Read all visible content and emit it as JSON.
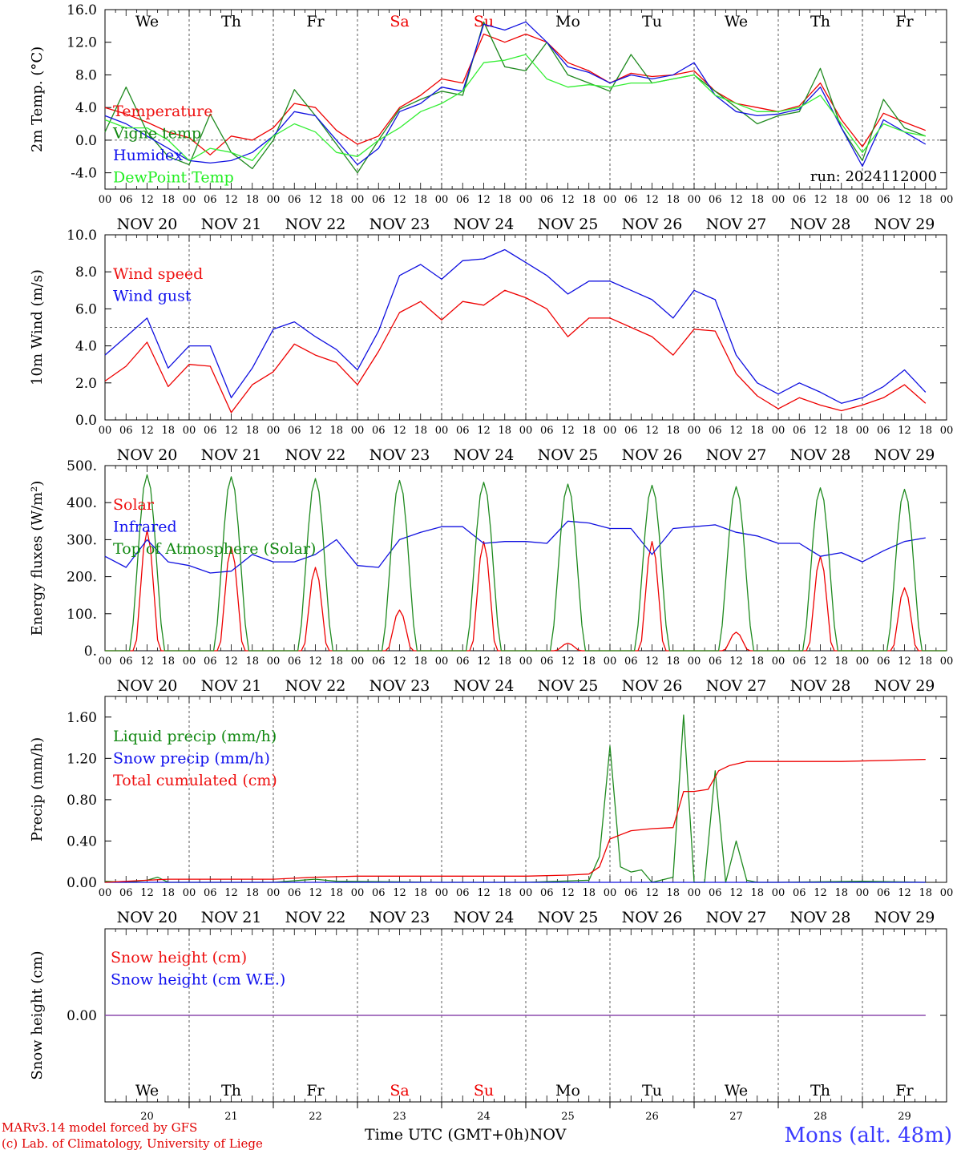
{
  "colors": {
    "red": "#ee0000",
    "green": "#1f8a1f",
    "blue": "#1010e0",
    "lightgreen": "#33ee33",
    "purple": "#8844aa",
    "weekend": "#ee0000",
    "text": "#000000",
    "legend_red": "#ee1111",
    "legend_green": "#118811",
    "legend_blue": "#1111ee",
    "legend_lightgreen": "#22ee22"
  },
  "days": [
    "We",
    "Th",
    "Fr",
    "Sa",
    "Su",
    "Mo",
    "Tu",
    "We",
    "Th",
    "Fr"
  ],
  "weekend_days": [
    "Sa",
    "Su"
  ],
  "date_labels": [
    "NOV 20",
    "NOV 21",
    "NOV 22",
    "NOV 23",
    "NOV 24",
    "NOV 25",
    "NOV 26",
    "NOV 27",
    "NOV 28",
    "NOV 29"
  ],
  "hour_ticks": [
    "00",
    "06",
    "12",
    "18"
  ],
  "bottom_day_numbers": [
    "20",
    "21",
    "22",
    "23",
    "24",
    "25",
    "26",
    "27",
    "28",
    "29"
  ],
  "run_label": "run: 2024112000",
  "footer": {
    "credit_line1": "MARv3.14 model forced by GFS",
    "credit_line2": "(c) Lab. of Climatology, University of Liege",
    "x_axis_title": "Time UTC (GMT+0h)",
    "month": "NOV",
    "location": "Mons (alt. 48m)"
  },
  "chart_data": [
    {
      "type": "line",
      "ylabel": "2m Temp. (°C)",
      "ylim": [
        -6,
        16
      ],
      "ytick_values": [
        -4,
        0,
        4,
        8,
        12,
        16
      ],
      "ytick_labels": [
        "-4.0",
        "0.0",
        "4.0",
        "8.0",
        "12.0",
        "16.0"
      ],
      "reference_line": 0,
      "x_unit": "hours since 2024-11-20 00 UTC",
      "series": [
        {
          "name": "Temperature",
          "color": "red",
          "x": [
            0,
            6,
            12,
            18,
            24,
            30,
            36,
            42,
            48,
            54,
            60,
            66,
            72,
            78,
            84,
            90,
            96,
            102,
            108,
            114,
            120,
            126,
            132,
            138,
            144,
            150,
            156,
            162,
            168,
            174,
            180,
            186,
            192,
            198,
            204,
            210,
            216,
            222,
            228,
            234
          ],
          "y": [
            4.0,
            3.2,
            2.2,
            1.0,
            0.3,
            -1.8,
            0.5,
            0.0,
            1.5,
            4.5,
            4.0,
            1.2,
            -0.5,
            0.5,
            4.0,
            5.5,
            7.5,
            7.0,
            13.0,
            12.0,
            13.0,
            12.0,
            9.5,
            8.5,
            7.0,
            8.2,
            7.8,
            8.0,
            8.5,
            6.0,
            4.5,
            4.0,
            3.5,
            4.2,
            7.0,
            2.5,
            -0.8,
            3.3,
            2.2,
            1.2
          ]
        },
        {
          "name": "Vigne temp",
          "color": "green",
          "x": [
            0,
            6,
            12,
            18,
            24,
            30,
            36,
            42,
            48,
            54,
            60,
            66,
            72,
            78,
            84,
            90,
            96,
            102,
            108,
            114,
            120,
            126,
            132,
            138,
            144,
            150,
            156,
            162,
            168,
            174,
            180,
            186,
            192,
            198,
            204,
            210,
            216,
            222,
            228,
            234
          ],
          "y": [
            1.0,
            6.5,
            1.0,
            -2.0,
            -3.0,
            3.2,
            -1.5,
            -3.5,
            0.0,
            6.2,
            3.0,
            -0.5,
            -4.0,
            0.0,
            3.8,
            5.0,
            6.0,
            5.5,
            14.5,
            9.0,
            8.5,
            12.0,
            8.0,
            7.0,
            6.0,
            10.5,
            7.0,
            7.5,
            8.0,
            6.0,
            4.0,
            2.0,
            3.0,
            3.5,
            8.8,
            1.5,
            -2.5,
            5.0,
            1.5,
            0.5
          ]
        },
        {
          "name": "Humidex",
          "color": "blue",
          "x": [
            0,
            6,
            12,
            18,
            24,
            30,
            36,
            42,
            48,
            54,
            60,
            66,
            72,
            78,
            84,
            90,
            96,
            102,
            108,
            114,
            120,
            126,
            132,
            138,
            144,
            150,
            156,
            162,
            168,
            174,
            180,
            186,
            192,
            198,
            204,
            210,
            216,
            222,
            228,
            234
          ],
          "y": [
            3.0,
            2.0,
            0.5,
            -1.0,
            -2.5,
            -2.8,
            -2.5,
            -1.5,
            0.5,
            3.5,
            3.0,
            0.0,
            -3.0,
            -1.0,
            3.5,
            4.5,
            6.5,
            6.0,
            14.2,
            13.5,
            14.5,
            12.0,
            9.0,
            8.3,
            7.0,
            8.0,
            7.5,
            8.0,
            9.5,
            5.5,
            3.5,
            3.0,
            3.2,
            3.8,
            6.5,
            1.5,
            -3.2,
            2.5,
            1.0,
            -0.5
          ]
        },
        {
          "name": "DewPoint Temp",
          "color": "lightgreen",
          "x": [
            0,
            6,
            12,
            18,
            24,
            30,
            36,
            42,
            48,
            54,
            60,
            66,
            72,
            78,
            84,
            90,
            96,
            102,
            108,
            114,
            120,
            126,
            132,
            138,
            144,
            150,
            156,
            162,
            168,
            174,
            180,
            186,
            192,
            198,
            204,
            210,
            216,
            222,
            228,
            234
          ],
          "y": [
            2.5,
            1.5,
            1.5,
            0.0,
            -2.5,
            -1.0,
            -1.5,
            -2.5,
            0.5,
            2.0,
            1.0,
            -1.5,
            -2.0,
            0.0,
            1.5,
            3.5,
            4.5,
            6.0,
            9.5,
            9.8,
            10.5,
            7.5,
            6.5,
            6.8,
            6.5,
            7.0,
            7.0,
            7.5,
            8.0,
            5.5,
            4.5,
            3.5,
            3.5,
            4.0,
            5.5,
            2.0,
            -1.5,
            2.0,
            1.0,
            0.5
          ]
        }
      ]
    },
    {
      "type": "line",
      "ylabel": "10m Wind (m/s)",
      "ylim": [
        0,
        10
      ],
      "ytick_values": [
        0,
        2,
        4,
        6,
        8,
        10
      ],
      "ytick_labels": [
        "0.0",
        "2.0",
        "4.0",
        "6.0",
        "8.0",
        "10.0"
      ],
      "reference_line": 5,
      "x_unit": "hours since 2024-11-20 00 UTC",
      "series": [
        {
          "name": "Wind speed",
          "color": "red",
          "x": [
            0,
            6,
            12,
            18,
            24,
            30,
            36,
            42,
            48,
            54,
            60,
            66,
            72,
            78,
            84,
            90,
            96,
            102,
            108,
            114,
            120,
            126,
            132,
            138,
            144,
            150,
            156,
            162,
            168,
            174,
            180,
            186,
            192,
            198,
            204,
            210,
            216,
            222,
            228,
            234
          ],
          "y": [
            2.1,
            2.9,
            4.2,
            1.8,
            3.0,
            2.9,
            0.4,
            1.9,
            2.6,
            4.1,
            3.5,
            3.1,
            1.9,
            3.7,
            5.8,
            6.4,
            5.4,
            6.4,
            6.2,
            7.0,
            6.6,
            6.0,
            4.5,
            5.5,
            5.5,
            5.0,
            4.5,
            3.5,
            4.9,
            4.8,
            2.5,
            1.3,
            0.6,
            1.2,
            0.8,
            0.5,
            0.8,
            1.2,
            1.9,
            0.9
          ]
        },
        {
          "name": "Wind gust",
          "color": "blue",
          "x": [
            0,
            6,
            12,
            18,
            24,
            30,
            36,
            42,
            48,
            54,
            60,
            66,
            72,
            78,
            84,
            90,
            96,
            102,
            108,
            114,
            120,
            126,
            132,
            138,
            144,
            150,
            156,
            162,
            168,
            174,
            180,
            186,
            192,
            198,
            204,
            210,
            216,
            222,
            228,
            234
          ],
          "y": [
            3.5,
            4.5,
            5.5,
            2.8,
            4.0,
            4.0,
            1.2,
            2.8,
            4.9,
            5.3,
            4.5,
            3.8,
            2.7,
            4.8,
            7.8,
            8.4,
            7.6,
            8.6,
            8.7,
            9.2,
            8.5,
            7.8,
            6.8,
            7.5,
            7.5,
            7.0,
            6.5,
            5.5,
            7.0,
            6.5,
            3.5,
            2.0,
            1.4,
            2.0,
            1.5,
            0.9,
            1.2,
            1.8,
            2.7,
            1.5
          ]
        }
      ]
    },
    {
      "type": "line",
      "ylabel": "Energy fluxes (W/m²)",
      "ylim": [
        0,
        500
      ],
      "ytick_values": [
        0,
        100,
        200,
        300,
        400,
        500
      ],
      "ytick_labels": [
        "0.",
        "100.",
        "200.",
        "300.",
        "400.",
        "500."
      ],
      "x_unit": "hours since 2024-11-20 00 UTC",
      "series": [
        {
          "name": "Solar",
          "color": "red",
          "peaks": [
            {
              "day": 0,
              "value": 325
            },
            {
              "day": 1,
              "value": 280
            },
            {
              "day": 2,
              "value": 225
            },
            {
              "day": 3,
              "value": 110
            },
            {
              "day": 4,
              "value": 295
            },
            {
              "day": 5,
              "value": 20
            },
            {
              "day": 6,
              "value": 295
            },
            {
              "day": 7,
              "value": 50
            },
            {
              "day": 8,
              "value": 255
            },
            {
              "day": 9,
              "value": 170
            }
          ]
        },
        {
          "name": "Infrared",
          "color": "blue",
          "x": [
            0,
            6,
            12,
            18,
            24,
            30,
            36,
            42,
            48,
            54,
            60,
            66,
            72,
            78,
            84,
            90,
            96,
            102,
            108,
            114,
            120,
            126,
            132,
            138,
            144,
            150,
            156,
            162,
            168,
            174,
            180,
            186,
            192,
            198,
            204,
            210,
            216,
            222,
            228,
            234
          ],
          "y": [
            255,
            225,
            300,
            240,
            230,
            210,
            215,
            260,
            240,
            240,
            260,
            300,
            230,
            225,
            300,
            320,
            335,
            335,
            290,
            295,
            295,
            290,
            350,
            345,
            330,
            330,
            260,
            330,
            335,
            340,
            320,
            310,
            290,
            290,
            255,
            265,
            240,
            270,
            295,
            305
          ]
        },
        {
          "name": "Top of Atmosphere (Solar)",
          "color": "green",
          "peaks": [
            {
              "day": 0,
              "value": 475
            },
            {
              "day": 1,
              "value": 470
            },
            {
              "day": 2,
              "value": 465
            },
            {
              "day": 3,
              "value": 460
            },
            {
              "day": 4,
              "value": 455
            },
            {
              "day": 5,
              "value": 450
            },
            {
              "day": 6,
              "value": 447
            },
            {
              "day": 7,
              "value": 443
            },
            {
              "day": 8,
              "value": 440
            },
            {
              "day": 9,
              "value": 436
            }
          ]
        }
      ]
    },
    {
      "type": "line",
      "ylabel": "Precip (mm/h)",
      "ylim": [
        0,
        1.8
      ],
      "ytick_values": [
        0,
        0.4,
        0.8,
        1.2,
        1.6
      ],
      "ytick_labels": [
        "0.00",
        "0.40",
        "0.80",
        "1.20",
        "1.60"
      ],
      "x_unit": "hours since 2024-11-20 00 UTC",
      "series": [
        {
          "name": "Liquid precip (mm/h)",
          "color": "green",
          "x": [
            0,
            6,
            12,
            15,
            18,
            24,
            48,
            60,
            66,
            96,
            120,
            138,
            141,
            144,
            147,
            150,
            153,
            156,
            162,
            165,
            168,
            171,
            174,
            177,
            180,
            183,
            186,
            192,
            216,
            234
          ],
          "y": [
            0.01,
            0.0,
            0.02,
            0.05,
            0.0,
            0.0,
            0.0,
            0.03,
            0.01,
            0.0,
            0.0,
            0.02,
            0.25,
            1.32,
            0.15,
            0.1,
            0.12,
            0.0,
            0.05,
            1.62,
            0.0,
            0.0,
            1.08,
            0.0,
            0.4,
            0.02,
            0.0,
            0.0,
            0.01,
            0.0
          ]
        },
        {
          "name": "Snow precip (mm/h)",
          "color": "blue",
          "x": [
            0,
            234
          ],
          "y": [
            0,
            0
          ]
        },
        {
          "name": "Total cumulated (cm)",
          "color": "red",
          "x": [
            0,
            12,
            18,
            48,
            60,
            72,
            96,
            120,
            132,
            138,
            141,
            144,
            147,
            150,
            156,
            162,
            165,
            168,
            172,
            175,
            178,
            183,
            186,
            192,
            210,
            234
          ],
          "y": [
            0.0,
            0.02,
            0.03,
            0.03,
            0.05,
            0.06,
            0.06,
            0.06,
            0.07,
            0.08,
            0.15,
            0.42,
            0.46,
            0.5,
            0.52,
            0.53,
            0.88,
            0.88,
            0.9,
            1.08,
            1.13,
            1.17,
            1.17,
            1.17,
            1.17,
            1.19
          ]
        }
      ]
    },
    {
      "type": "line",
      "ylabel": "Snow height (cm)",
      "ylim": [
        -1,
        1
      ],
      "ytick_values": [
        0
      ],
      "ytick_labels": [
        "0.00"
      ],
      "x_unit": "hours since 2024-11-20 00 UTC",
      "series": [
        {
          "name": "Snow height (cm)",
          "color": "red",
          "x": [
            0,
            234
          ],
          "y": [
            0,
            0
          ]
        },
        {
          "name": "Snow height (cm W.E.)",
          "color": "blue",
          "x": [
            0,
            234
          ],
          "y": [
            0,
            0
          ]
        }
      ]
    }
  ]
}
